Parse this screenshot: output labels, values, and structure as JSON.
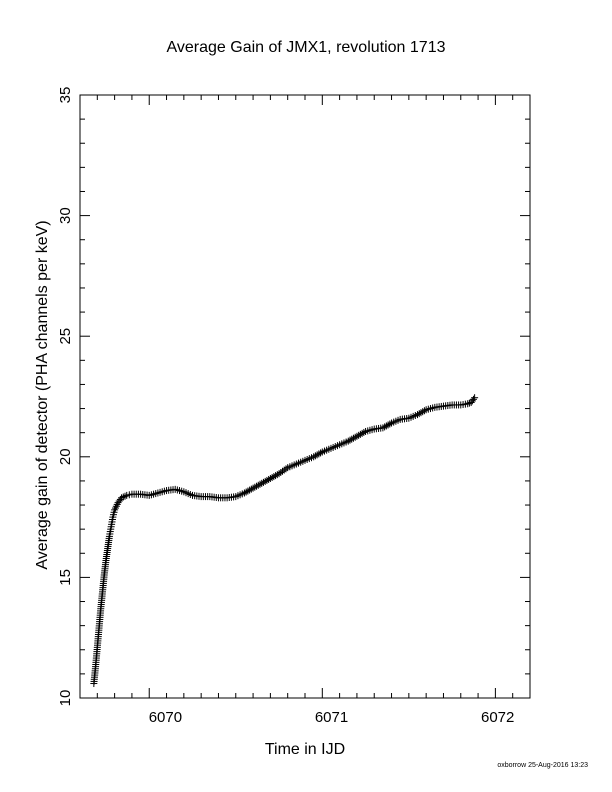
{
  "chart_data": {
    "type": "scatter",
    "title": "Average Gain of JMX1, revolution 1713",
    "xlabel": "Time in IJD",
    "ylabel": "Average gain of detector (PHA channels per keV)",
    "xlim": [
      6069.6,
      6072.2
    ],
    "ylim": [
      10,
      35
    ],
    "xticks": [
      "6070",
      "6071",
      "6072"
    ],
    "yticks": [
      "10",
      "15",
      "20",
      "25",
      "30",
      "35"
    ],
    "marker": "+",
    "color": "#000000",
    "grid": false,
    "series": [
      {
        "points": [
          [
            6069.68,
            10.6
          ],
          [
            6069.69,
            11.3
          ],
          [
            6069.7,
            12.1
          ],
          [
            6069.71,
            12.9
          ],
          [
            6069.72,
            13.7
          ],
          [
            6069.73,
            14.4
          ],
          [
            6069.74,
            15.1
          ],
          [
            6069.75,
            15.7
          ],
          [
            6069.76,
            16.2
          ],
          [
            6069.77,
            16.7
          ],
          [
            6069.78,
            17.1
          ],
          [
            6069.79,
            17.5
          ],
          [
            6069.8,
            17.8
          ],
          [
            6069.82,
            18.1
          ],
          [
            6069.84,
            18.3
          ],
          [
            6069.87,
            18.4
          ],
          [
            6069.9,
            18.45
          ],
          [
            6069.95,
            18.45
          ],
          [
            6070.0,
            18.4
          ],
          [
            6070.05,
            18.5
          ],
          [
            6070.1,
            18.6
          ],
          [
            6070.15,
            18.65
          ],
          [
            6070.2,
            18.55
          ],
          [
            6070.25,
            18.4
          ],
          [
            6070.3,
            18.35
          ],
          [
            6070.35,
            18.35
          ],
          [
            6070.4,
            18.3
          ],
          [
            6070.45,
            18.3
          ],
          [
            6070.5,
            18.35
          ],
          [
            6070.55,
            18.5
          ],
          [
            6070.6,
            18.7
          ],
          [
            6070.65,
            18.9
          ],
          [
            6070.7,
            19.1
          ],
          [
            6070.75,
            19.3
          ],
          [
            6070.8,
            19.55
          ],
          [
            6070.85,
            19.7
          ],
          [
            6070.9,
            19.85
          ],
          [
            6070.95,
            20.0
          ],
          [
            6071.0,
            20.2
          ],
          [
            6071.05,
            20.35
          ],
          [
            6071.1,
            20.5
          ],
          [
            6071.15,
            20.65
          ],
          [
            6071.2,
            20.85
          ],
          [
            6071.25,
            21.05
          ],
          [
            6071.3,
            21.15
          ],
          [
            6071.35,
            21.2
          ],
          [
            6071.4,
            21.4
          ],
          [
            6071.45,
            21.55
          ],
          [
            6071.5,
            21.6
          ],
          [
            6071.55,
            21.75
          ],
          [
            6071.6,
            21.95
          ],
          [
            6071.65,
            22.05
          ],
          [
            6071.7,
            22.1
          ],
          [
            6071.75,
            22.15
          ],
          [
            6071.8,
            22.15
          ],
          [
            6071.84,
            22.2
          ],
          [
            6071.86,
            22.25
          ],
          [
            6071.88,
            22.45
          ]
        ]
      }
    ]
  },
  "footer": {
    "credit": "oxborrow 25-Aug-2016 13:23"
  }
}
